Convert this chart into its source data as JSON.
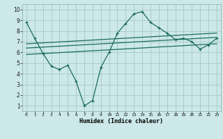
{
  "title": "",
  "xlabel": "Humidex (Indice chaleur)",
  "bg_color": "#cce8e8",
  "grid_color": "#aacccc",
  "line_color": "#1a6b5a",
  "xlim": [
    -0.5,
    23.5
  ],
  "ylim": [
    0.5,
    10.5
  ],
  "xtick_labels": [
    "0",
    "1",
    "2",
    "3",
    "4",
    "5",
    "6",
    "7",
    "8",
    "9",
    "10",
    "11",
    "12",
    "13",
    "14",
    "15",
    "16",
    "17",
    "18",
    "19",
    "20",
    "21",
    "22",
    "23"
  ],
  "ytick_labels": [
    "1",
    "2",
    "3",
    "4",
    "5",
    "6",
    "7",
    "8",
    "9",
    "10"
  ],
  "curve1_x": [
    0,
    1,
    2,
    3,
    4,
    5,
    6,
    7,
    8,
    9,
    10,
    11,
    12,
    13,
    14,
    15,
    16,
    17,
    18,
    19,
    20,
    21,
    22,
    23
  ],
  "curve1_y": [
    8.8,
    7.3,
    5.9,
    4.7,
    4.4,
    4.8,
    3.3,
    1.0,
    1.5,
    4.6,
    6.0,
    7.8,
    8.7,
    9.6,
    9.8,
    8.8,
    8.3,
    7.8,
    7.2,
    7.3,
    7.0,
    6.3,
    6.7,
    7.3
  ],
  "line2_x": [
    0,
    23
  ],
  "line2_y": [
    6.8,
    7.8
  ],
  "line3_x": [
    0,
    23
  ],
  "line3_y": [
    6.4,
    7.4
  ],
  "line4_x": [
    0,
    23
  ],
  "line4_y": [
    5.8,
    6.8
  ]
}
